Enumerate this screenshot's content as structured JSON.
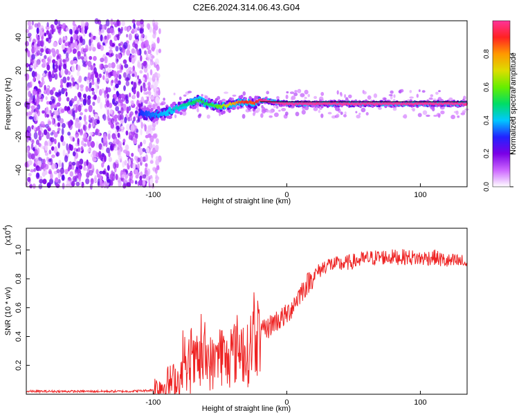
{
  "chart_data": [
    {
      "type": "heatmap",
      "title": "C2E6.2024.314.06.43.G04",
      "xlabel": "Height of straight line (km)",
      "ylabel": "Frequency (Hz)",
      "xlim": [
        -195,
        135
      ],
      "ylim": [
        -50,
        50
      ],
      "xticks": [
        -100,
        0,
        100
      ],
      "xtick_labels": [
        "-100",
        "0",
        "100"
      ],
      "yticks": [
        -40,
        -20,
        0,
        20,
        40
      ],
      "ytick_labels": [
        "-40",
        "-20",
        "0",
        "20",
        "40"
      ],
      "colorbar": {
        "label": "Normalized spectral amplitude",
        "range": [
          0.0,
          1.0
        ],
        "ticks": [
          0.0,
          0.2,
          0.4,
          0.6,
          0.8
        ],
        "tick_labels": [
          "0.0",
          "0.2",
          "0.4",
          "0.6",
          "0.8"
        ],
        "colors": [
          "#ffffff",
          "#cc66ff",
          "#7a00e6",
          "#2222ff",
          "#00c8ff",
          "#00dd66",
          "#66ee00",
          "#dddd00",
          "#ff9900",
          "#ff2222",
          "#ff3399"
        ]
      },
      "noise_region_x": [
        -195,
        -100
      ],
      "track": {
        "x": [
          -110,
          -100,
          -90,
          -80,
          -70,
          -65,
          -60,
          -55,
          -50,
          -45,
          -40,
          -35,
          -30,
          -25,
          -20,
          -15,
          -10,
          0,
          20,
          40,
          60,
          80,
          100,
          120,
          135
        ],
        "frequency": [
          -6,
          -7,
          -5,
          -2,
          1,
          2,
          0,
          -1,
          -2,
          -1,
          0,
          1,
          1,
          0,
          2,
          2,
          1,
          0,
          0,
          0,
          0,
          0,
          0,
          0,
          0
        ],
        "amplitude": [
          0.3,
          0.35,
          0.4,
          0.45,
          0.5,
          0.55,
          0.5,
          0.55,
          0.6,
          0.7,
          0.75,
          0.85,
          0.9,
          0.85,
          0.95,
          1.0,
          1.0,
          1.0,
          1.0,
          1.0,
          1.0,
          1.0,
          1.0,
          1.0,
          1.0
        ]
      }
    },
    {
      "type": "line",
      "xlabel": "Height of straight line (km)",
      "ylabel": "SNR (10 * v/v)",
      "multiplier_label": "(x10",
      "multiplier_exponent": "4",
      "multiplier_close": ")",
      "xlim": [
        -195,
        135
      ],
      "ylim": [
        0,
        1.15
      ],
      "xticks": [
        -100,
        0,
        100
      ],
      "xtick_labels": [
        "-100",
        "0",
        "100"
      ],
      "yticks": [
        0.2,
        0.4,
        0.6,
        0.8,
        1.0
      ],
      "ytick_labels": [
        "0.2",
        "0.4",
        "0.6",
        "0.8",
        "1.0"
      ],
      "series": [
        {
          "name": "SNR",
          "color": "#ee2222",
          "x": [
            -195,
            -180,
            -160,
            -140,
            -120,
            -105,
            -100,
            -95,
            -90,
            -85,
            -80,
            -75,
            -70,
            -65,
            -60,
            -55,
            -50,
            -45,
            -40,
            -35,
            -30,
            -25,
            -20,
            -15,
            -10,
            -5,
            0,
            5,
            10,
            20,
            30,
            40,
            50,
            60,
            70,
            80,
            90,
            100,
            110,
            120,
            125,
            130,
            135
          ],
          "values": [
            0.02,
            0.02,
            0.02,
            0.02,
            0.02,
            0.025,
            0.03,
            0.05,
            0.07,
            0.09,
            0.1,
            0.15,
            0.2,
            0.22,
            0.25,
            0.2,
            0.3,
            0.22,
            0.28,
            0.35,
            0.25,
            0.4,
            0.42,
            0.45,
            0.5,
            0.52,
            0.55,
            0.62,
            0.7,
            0.82,
            0.9,
            0.9,
            0.92,
            0.94,
            0.95,
            0.95,
            0.95,
            0.94,
            0.95,
            0.92,
            0.92,
            0.92,
            0.9
          ]
        }
      ]
    }
  ]
}
